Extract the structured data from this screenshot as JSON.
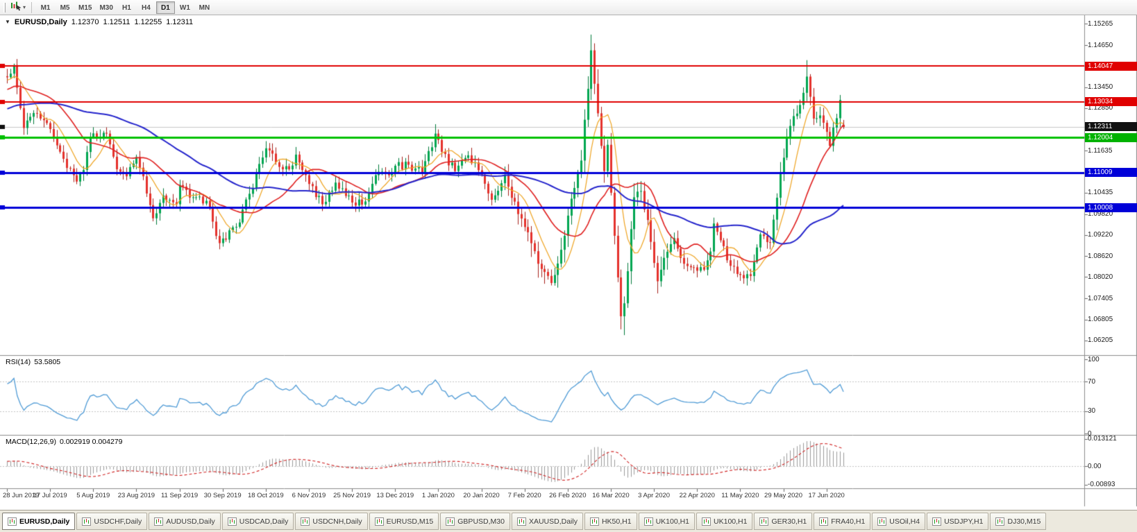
{
  "toolbar": {
    "timeframes": [
      {
        "label": "M1",
        "active": false
      },
      {
        "label": "M5",
        "active": false
      },
      {
        "label": "M15",
        "active": false
      },
      {
        "label": "M30",
        "active": false
      },
      {
        "label": "H1",
        "active": false
      },
      {
        "label": "H4",
        "active": false
      },
      {
        "label": "D1",
        "active": true
      },
      {
        "label": "W1",
        "active": false
      },
      {
        "label": "MN",
        "active": false
      }
    ],
    "icons": {
      "tool": "chart-cursor-icon",
      "caret": "▾"
    }
  },
  "chart": {
    "collapse_icon": "▼",
    "symbol_title": "EURUSD,Daily",
    "open": "1.12370",
    "high": "1.12511",
    "low": "1.12255",
    "close": "1.12311",
    "price_axis_labels": [
      "1.15265",
      "1.14650",
      "1.13450",
      "1.12850",
      "1.11635",
      "1.10435",
      "1.09820",
      "1.09220",
      "1.08620",
      "1.08020",
      "1.07405",
      "1.06805",
      "1.06205"
    ],
    "price_badges": [
      {
        "value": "1.14047",
        "price": 1.14047,
        "color": "#e00000"
      },
      {
        "value": "1.13034",
        "price": 1.13034,
        "color": "#e00000"
      },
      {
        "value": "1.12311",
        "price": 1.12311,
        "color": "#111111"
      },
      {
        "value": "1.12004",
        "price": 1.12004,
        "color": "#00b200"
      },
      {
        "value": "1.11009",
        "price": 1.11009,
        "color": "#0000d8"
      },
      {
        "value": "1.10008",
        "price": 1.10008,
        "color": "#0000d8"
      }
    ],
    "colors": {
      "candle_up": "#00a651",
      "candle_up_line": "#007a3a",
      "candle_down": "#e5312b",
      "candle_down_line": "#a6201a",
      "ma_fast": "#efa31f",
      "ma_mid": "#e02020",
      "ma_slow": "#2424cc",
      "bid_line": "#c6c6c6"
    }
  },
  "rsi": {
    "label": "RSI(14)",
    "value": "53.5805",
    "axis": [
      "100",
      "70",
      "30",
      "0"
    ],
    "levels": [
      70,
      30
    ],
    "color": "#4f9bd6"
  },
  "macd": {
    "label": "MACD(12,26,9)",
    "values": "0.002919 0.004279",
    "axis": [
      "0.013121",
      "0.00",
      "-0.00893"
    ],
    "histogram_color": "#9a9a9a",
    "signal_color": "#d02020"
  },
  "dates": [
    "28 Jun 2019",
    "17 Jul 2019",
    "5 Aug 2019",
    "23 Aug 2019",
    "11 Sep 2019",
    "30 Sep 2019",
    "18 Oct 2019",
    "6 Nov 2019",
    "25 Nov 2019",
    "13 Dec 2019",
    "1 Jan 2020",
    "20 Jan 2020",
    "7 Feb 2020",
    "26 Feb 2020",
    "16 Mar 2020",
    "3 Apr 2020",
    "22 Apr 2020",
    "11 May 2020",
    "29 May 2020",
    "17 Jun 2020"
  ],
  "tabs": [
    {
      "label": "EURUSD,Daily",
      "active": true
    },
    {
      "label": "USDCHF,Daily",
      "active": false
    },
    {
      "label": "AUDUSD,Daily",
      "active": false
    },
    {
      "label": "USDCAD,Daily",
      "active": false
    },
    {
      "label": "USDCNH,Daily",
      "active": false
    },
    {
      "label": "EURUSD,M15",
      "active": false
    },
    {
      "label": "GBPUSD,M30",
      "active": false
    },
    {
      "label": "XAUUSD,Daily",
      "active": false
    },
    {
      "label": "HK50,H1",
      "active": false
    },
    {
      "label": "UK100,H1",
      "active": false
    },
    {
      "label": "UK100,H1",
      "active": false
    },
    {
      "label": "GER30,H1",
      "active": false
    },
    {
      "label": "FRA40,H1",
      "active": false
    },
    {
      "label": "USOil,H4",
      "active": false
    },
    {
      "label": "USDJPY,H1",
      "active": false
    },
    {
      "label": "DJ30,M15",
      "active": false
    }
  ],
  "chart_data": {
    "type": "candlestick",
    "symbol": "EURUSD",
    "timeframe": "Daily",
    "hlines": [
      {
        "price": 1.14047,
        "color": "#e00000",
        "width": 2
      },
      {
        "price": 1.13034,
        "color": "#e00000",
        "width": 2
      },
      {
        "price": 1.12004,
        "color": "#00c000",
        "width": 3
      },
      {
        "price": 1.11009,
        "color": "#0000d8",
        "width": 3
      },
      {
        "price": 1.10008,
        "color": "#0000d8",
        "width": 3
      }
    ],
    "current_price": 1.12311,
    "anchors": [
      [
        0,
        1.1373
      ],
      [
        2,
        1.1408
      ],
      [
        4,
        1.1285
      ],
      [
        5,
        1.1228
      ],
      [
        9,
        1.127
      ],
      [
        13,
        1.1225
      ],
      [
        17,
        1.114
      ],
      [
        21,
        1.1075
      ],
      [
        23,
        1.1108
      ],
      [
        25,
        1.1203
      ],
      [
        30,
        1.1212
      ],
      [
        33,
        1.111
      ],
      [
        36,
        1.109
      ],
      [
        39,
        1.1145
      ],
      [
        41,
        1.109
      ],
      [
        44,
        1.097
      ],
      [
        47,
        1.1035
      ],
      [
        51,
        1.101
      ],
      [
        52,
        1.1065
      ],
      [
        56,
        1.103
      ],
      [
        60,
        1.102
      ],
      [
        64,
        1.0899
      ],
      [
        70,
        1.0958
      ],
      [
        73,
        1.104
      ],
      [
        78,
        1.117
      ],
      [
        81,
        1.113
      ],
      [
        85,
        1.111
      ],
      [
        87,
        1.1152
      ],
      [
        91,
        1.1068
      ],
      [
        95,
        1.101
      ],
      [
        99,
        1.1072
      ],
      [
        104,
        1.1015
      ],
      [
        108,
        1.1018
      ],
      [
        112,
        1.1103
      ],
      [
        115,
        1.1093
      ],
      [
        117,
        1.112
      ],
      [
        121,
        1.1123
      ],
      [
        125,
        1.1098
      ],
      [
        129,
        1.1212
      ],
      [
        131,
        1.116
      ],
      [
        135,
        1.1105
      ],
      [
        139,
        1.115
      ],
      [
        143,
        1.1095
      ],
      [
        146,
        1.1023
      ],
      [
        150,
        1.1093
      ],
      [
        154,
        1.0982
      ],
      [
        156,
        1.0945
      ],
      [
        160,
        1.084
      ],
      [
        164,
        1.0785
      ],
      [
        167,
        1.088
      ],
      [
        170,
        1.1026
      ],
      [
        173,
        1.1135
      ],
      [
        176,
        1.145
      ],
      [
        178,
        1.127
      ],
      [
        180,
        1.1105
      ],
      [
        181,
        1.118
      ],
      [
        183,
        1.092
      ],
      [
        185,
        1.069
      ],
      [
        186,
        1.0727
      ],
      [
        189,
        1.103
      ],
      [
        191,
        1.1048
      ],
      [
        193,
        1.0965
      ],
      [
        196,
        1.079
      ],
      [
        198,
        1.0857
      ],
      [
        201,
        1.0913
      ],
      [
        204,
        1.084
      ],
      [
        208,
        1.082
      ],
      [
        210,
        1.0823
      ],
      [
        212,
        1.0875
      ],
      [
        213,
        1.0955
      ],
      [
        215,
        1.0907
      ],
      [
        218,
        1.0834
      ],
      [
        221,
        1.0808
      ],
      [
        224,
        1.0805
      ],
      [
        227,
        1.0924
      ],
      [
        230,
        1.09
      ],
      [
        233,
        1.1101
      ],
      [
        236,
        1.1234
      ],
      [
        239,
        1.1294
      ],
      [
        241,
        1.1375
      ],
      [
        243,
        1.1255
      ],
      [
        245,
        1.1264
      ],
      [
        246,
        1.1243
      ],
      [
        248,
        1.1177
      ],
      [
        251,
        1.1308
      ],
      [
        252,
        1.12311
      ]
    ],
    "wick_overrides": [
      {
        "day": 2,
        "high": 1.1412
      },
      {
        "day": 30,
        "high": 1.123
      },
      {
        "day": 129,
        "high": 1.1239
      },
      {
        "day": 164,
        "low": 1.0778
      },
      {
        "day": 176,
        "high": 1.1495
      },
      {
        "day": 177,
        "high": 1.147
      },
      {
        "day": 186,
        "low": 1.0636
      },
      {
        "day": 241,
        "high": 1.1422
      }
    ],
    "last_candle": {
      "open": 1.1237,
      "high": 1.12511,
      "low": 1.12255,
      "close": 1.12311
    },
    "moving_averages": [
      {
        "period": 8,
        "color": "#efa31f",
        "width": 1.2
      },
      {
        "period": 21,
        "color": "#e02020",
        "width": 1.6
      },
      {
        "period": 55,
        "color": "#2424cc",
        "width": 2
      }
    ],
    "rsi_period": 14,
    "macd_params": [
      12,
      26,
      9
    ],
    "price_axis_range": [
      1.06205,
      1.15265
    ],
    "rsi_axis_range": [
      0,
      100
    ],
    "macd_axis_range": [
      -0.00893,
      0.013121
    ]
  }
}
